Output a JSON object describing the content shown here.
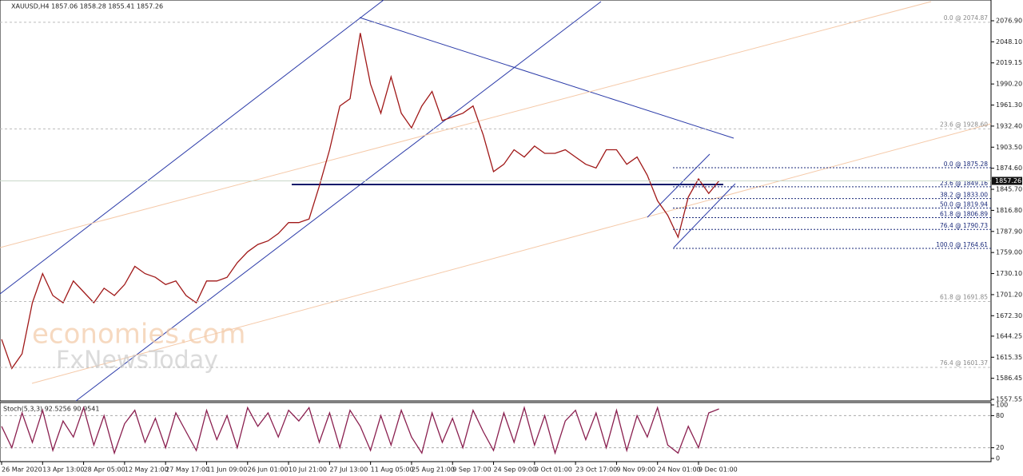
{
  "chart_data": [
    {
      "type": "line",
      "title": "XAUUSD,H4  1857.06 1858.28 1855.41 1857.26",
      "watermark": [
        "economies.com",
        "FxNewsToday"
      ],
      "categories": [
        "26 Mar 2020",
        null,
        null,
        null,
        "13 Apr 13:00",
        null,
        null,
        null,
        "28 Apr 05:00",
        null,
        null,
        null,
        "12 May 21:00",
        null,
        null,
        null,
        "27 May 17:00",
        null,
        null,
        null,
        "11 Jun 09:00",
        null,
        null,
        null,
        "26 Jun 01:00",
        null,
        null,
        null,
        "10 Jul 21:00",
        null,
        null,
        null,
        "27 Jul 13:00",
        null,
        null,
        null,
        "11 Aug 05:00",
        null,
        null,
        null,
        "25 Aug 21:00",
        null,
        null,
        null,
        "9 Sep 17:00",
        null,
        null,
        null,
        "24 Sep 09:00",
        null,
        null,
        null,
        "9 Oct 01:00",
        null,
        null,
        null,
        "23 Oct 17:00",
        null,
        null,
        null,
        "9 Nov 09:00",
        null,
        null,
        null,
        "24 Nov 01:00",
        null,
        null,
        null,
        "9 Dec 01:00",
        null,
        null
      ],
      "series": [
        {
          "name": "XAUUSD",
          "color": "#a01818",
          "values": [
            1640,
            1600,
            1620,
            1690,
            1730,
            1700,
            1690,
            1720,
            1705,
            1690,
            1710,
            1700,
            1715,
            1740,
            1730,
            1725,
            1715,
            1720,
            1700,
            1690,
            1720,
            1720,
            1725,
            1745,
            1760,
            1770,
            1775,
            1785,
            1800,
            1800,
            1805,
            1850,
            1900,
            1960,
            1970,
            2060,
            1990,
            1950,
            2000,
            1950,
            1930,
            1960,
            1980,
            1940,
            1945,
            1950,
            1960,
            1920,
            1870,
            1880,
            1900,
            1890,
            1905,
            1895,
            1895,
            1900,
            1890,
            1880,
            1875,
            1900,
            1900,
            1880,
            1890,
            1865,
            1830,
            1810,
            1780,
            1835,
            1860,
            1840,
            1857.26
          ]
        }
      ],
      "ylim": [
        1555.4,
        2105.4
      ],
      "yticks": [
        {
          "value": 2076.9,
          "label": "2076.90"
        },
        {
          "value": 2048.1,
          "label": "2048.10"
        },
        2019.15,
        {
          "value": 1990.2,
          "label": "1990.20"
        },
        {
          "value": 1961.3,
          "label": "1961.30"
        },
        {
          "value": 1932.4,
          "label": "1932.40"
        },
        {
          "value": 1903.5,
          "label": "1903.50"
        },
        {
          "value": 1874.6,
          "label": "1874.60"
        },
        {
          "value": 1845.7,
          "label": "1845.70"
        },
        {
          "value": 1816.8,
          "label": "1816.80"
        },
        {
          "value": 1787.9,
          "label": "1787.90"
        },
        {
          "value": 1759,
          "label": "1759.00"
        },
        {
          "value": 1730.1,
          "label": "1730.10"
        },
        {
          "value": 1701.2,
          "label": "1701.20"
        },
        {
          "value": 1672.3,
          "label": "1672.30"
        },
        1644.25,
        1615.35,
        1586.45,
        1557.55
      ],
      "current_price": 1857.26,
      "fib_major": [
        {
          "label": "0.0 @ 2074.87",
          "price": 2074.87
        },
        {
          "label": "23.6 @ 1928.60",
          "price": 1928.6
        },
        {
          "label": "61.8 @ 1691.85",
          "price": 1691.85
        },
        {
          "label": "76.4 @ 1601.37",
          "price": 1601.37
        }
      ],
      "fib_minor": [
        {
          "label": "0.0 @ 1875.28",
          "price": 1875.28
        },
        {
          "label": "23.6 @ 1849.16",
          "price": 1849.16
        },
        {
          "label": "38.2 @ 1833.00",
          "price": 1833
        },
        {
          "label": "50.0 @ 1819.94",
          "price": 1819.94
        },
        {
          "label": "61.8 @ 1806.89",
          "price": 1806.89
        },
        {
          "label": "76.4 @ 1790.73",
          "price": 1790.73
        },
        {
          "label": "100.0 @ 1764.61",
          "price": 1764.61
        }
      ]
    },
    {
      "type": "line",
      "title": "Stoch(5,3,3) 92.5256 90.9541",
      "series": [
        {
          "name": "Stoch",
          "color": "#8a1f4f",
          "values": [
            60,
            20,
            85,
            30,
            90,
            15,
            70,
            40,
            95,
            25,
            80,
            10,
            65,
            90,
            30,
            75,
            20,
            85,
            50,
            15,
            90,
            35,
            80,
            20,
            95,
            60,
            85,
            40,
            90,
            70,
            95,
            30,
            85,
            20,
            90,
            60,
            15,
            80,
            25,
            90,
            40,
            10,
            85,
            30,
            75,
            20,
            90,
            50,
            15,
            85,
            30,
            95,
            25,
            80,
            10,
            70,
            90,
            35,
            85,
            20,
            90,
            15,
            80,
            40,
            95,
            25,
            10,
            60,
            20,
            85,
            92.53
          ]
        }
      ],
      "ylim": [
        0,
        100
      ],
      "yticks": [
        100,
        80,
        20,
        0
      ]
    }
  ]
}
